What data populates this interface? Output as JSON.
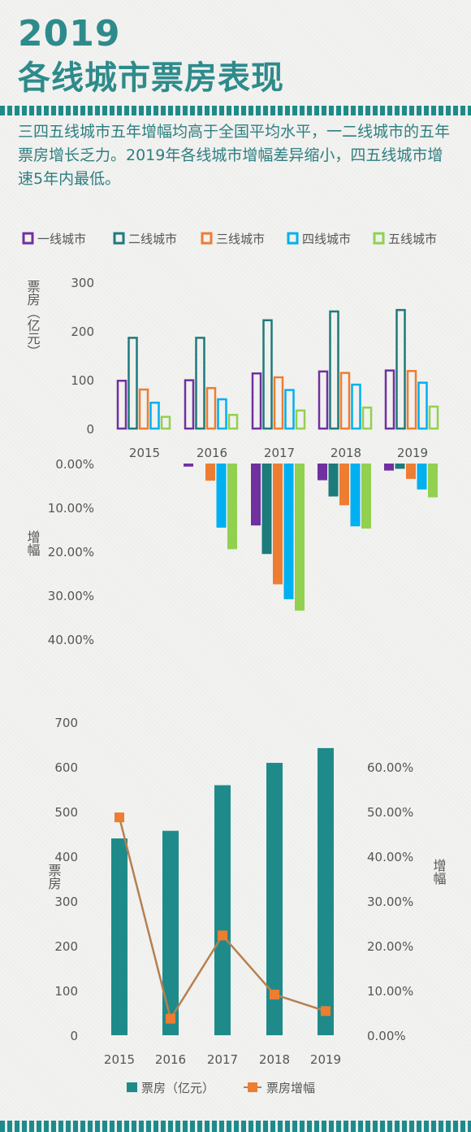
{
  "header": {
    "year": "2019",
    "title": "各线城市票房表现",
    "description": "三四五线城市五年增幅均高于全国平均水平，一二线城市的五年票房增长乏力。2019年各线城市增幅差异缩小，四五线城市增速5年内最低。"
  },
  "colors": {
    "teal": "#1f8a8a",
    "title": "#2e8b8b",
    "tier1": "#7030a0",
    "tier2": "#1d7b7b",
    "tier3": "#ed7d31",
    "tier4": "#00b0f0",
    "tier5": "#92d050",
    "line": "#b5804f",
    "marker": "#ed7d31"
  },
  "chart_data": [
    {
      "type": "bar",
      "categories": [
        "2015",
        "2016",
        "2017",
        "2018",
        "2019"
      ],
      "series": [
        {
          "name": "一线城市",
          "values": [
            98,
            99,
            113,
            117,
            119
          ]
        },
        {
          "name": "二线城市",
          "values": [
            186,
            186,
            222,
            240,
            243
          ]
        },
        {
          "name": "三线城市",
          "values": [
            80,
            83,
            105,
            114,
            118
          ]
        },
        {
          "name": "四线城市",
          "values": [
            53,
            60,
            79,
            90,
            94
          ]
        },
        {
          "name": "五线城市",
          "values": [
            24,
            28,
            37,
            43,
            45
          ]
        }
      ],
      "ylabel": "票房（亿元）",
      "ylim": [
        0,
        300
      ],
      "yticks": [
        "0",
        "100",
        "200",
        "300"
      ],
      "legend": "top"
    },
    {
      "type": "bar",
      "categories": [
        "2015",
        "2016",
        "2017",
        "2018",
        "2019"
      ],
      "series": [
        {
          "name": "一线城市",
          "values": [
            null,
            0.7,
            14.1,
            3.8,
            1.6
          ]
        },
        {
          "name": "二线城市",
          "values": [
            null,
            0.0,
            20.6,
            7.5,
            1.2
          ]
        },
        {
          "name": "三线城市",
          "values": [
            null,
            3.9,
            27.5,
            9.5,
            3.5
          ]
        },
        {
          "name": "四线城市",
          "values": [
            null,
            14.6,
            30.9,
            14.3,
            5.9
          ]
        },
        {
          "name": "五线城市",
          "values": [
            null,
            19.5,
            33.5,
            14.8,
            7.7
          ]
        }
      ],
      "ylabel": "增幅",
      "ylim": [
        0,
        40
      ],
      "yticks": [
        "0.00%",
        "10.00%",
        "20.00%",
        "30.00%",
        "40.00%"
      ]
    },
    {
      "type": "bar",
      "categories": [
        "2015",
        "2016",
        "2017",
        "2018",
        "2019"
      ],
      "series": [
        {
          "name": "票房（亿元）",
          "type": "bar",
          "values": [
            440,
            457,
            559,
            609,
            642
          ]
        },
        {
          "name": "票房增幅",
          "type": "line",
          "values": [
            48.7,
            3.7,
            22.3,
            9.1,
            5.4
          ]
        }
      ],
      "ylabel": "票房",
      "y2label": "增幅",
      "ylim": [
        0,
        700
      ],
      "y2lim": [
        0,
        60
      ],
      "yticks": [
        "0",
        "100",
        "200",
        "300",
        "400",
        "500",
        "600",
        "700"
      ],
      "y2ticks": [
        "0.00%",
        "10.00%",
        "20.00%",
        "30.00%",
        "40.00%",
        "50.00%",
        "60.00%"
      ],
      "legend": "bottom"
    }
  ]
}
